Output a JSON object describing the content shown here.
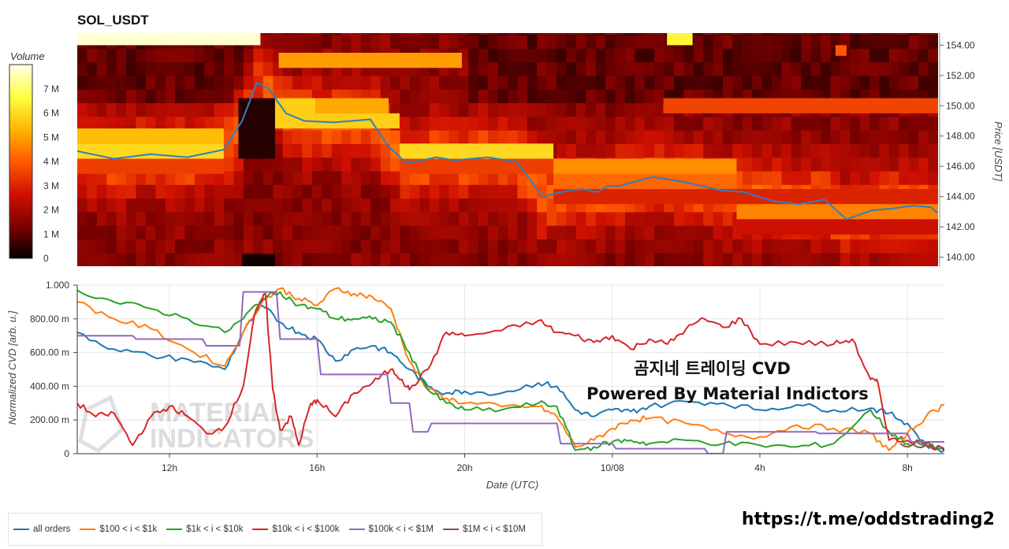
{
  "title": "SOL_USDT",
  "watermark": {
    "line1": "곰지네 트레이딩 CVD",
    "line2": "Powered By Material Indictors"
  },
  "telegram_link": "https://t.me/oddstrading2",
  "brand_watermark": {
    "line1": "MATERIAL",
    "line2": "INDICATORS"
  },
  "chart_data": [
    {
      "type": "heatmap",
      "title": "SOL_USDT",
      "colorbar": {
        "label": "Volume",
        "ticks": [
          "0",
          "1 M",
          "2 M",
          "3 M",
          "4 M",
          "5 M",
          "6 M",
          "7 M"
        ],
        "tick_values": [
          0,
          1,
          2,
          3,
          4,
          5,
          6,
          7
        ],
        "max": 8,
        "colors": [
          "#000000",
          "#7a0000",
          "#d01000",
          "#ff5a00",
          "#ffb300",
          "#ffff40",
          "#ffffe8"
        ]
      },
      "ylabel": "Price [USDT]",
      "y_ticks": [
        "140.00",
        "142.00",
        "144.00",
        "146.00",
        "148.00",
        "150.00",
        "152.00",
        "154.00"
      ],
      "y_tick_values": [
        140,
        142,
        144,
        146,
        148,
        150,
        152,
        154
      ],
      "ylim": [
        139.4,
        154.8
      ],
      "x_hours_range": [
        9.5,
        33.0
      ],
      "price_line": {
        "color": "#2f7fc1",
        "t": [
          9.5,
          10.5,
          11.5,
          12.5,
          13.5,
          14.0,
          14.4,
          14.7,
          15.2,
          15.7,
          16.5,
          17.5,
          18.0,
          18.5,
          19.3,
          19.8,
          20.7,
          21.5,
          22.2,
          22.9,
          23.3,
          23.7,
          24.0,
          24.3,
          25.2,
          26.0,
          27.1,
          27.7,
          28.5,
          29.2,
          29.9,
          30.5,
          31.2,
          31.7,
          32.3,
          32.8,
          33.0
        ],
        "price": [
          147.0,
          146.5,
          146.8,
          146.6,
          147.1,
          149.0,
          151.5,
          151.2,
          149.5,
          149.0,
          148.9,
          149.1,
          147.3,
          146.2,
          146.6,
          146.4,
          146.6,
          146.3,
          144.0,
          144.4,
          144.5,
          144.3,
          144.7,
          144.7,
          145.3,
          145.0,
          144.4,
          144.3,
          143.7,
          143.5,
          143.8,
          142.5,
          143.1,
          143.2,
          143.4,
          143.3,
          142.9
        ]
      },
      "heat_segments": [
        {
          "bands": [
            147.5,
            148.5
          ],
          "t0": 9.5,
          "t1": 13.5,
          "level": 5.5
        },
        {
          "bands": [
            146.5,
            147.5
          ],
          "t0": 9.5,
          "t1": 13.5,
          "level": 6.0
        },
        {
          "bands": [
            145.5,
            146.5
          ],
          "t0": 9.5,
          "t1": 13.5,
          "level": 3.5
        },
        {
          "bands": [
            148.5,
            150.5
          ],
          "t0": 14.8,
          "t1": 16.0,
          "level": 5.8
        },
        {
          "bands": [
            149.5,
            150.5
          ],
          "t0": 16.0,
          "t1": 18.0,
          "level": 5.2
        },
        {
          "bands": [
            148.5,
            149.5
          ],
          "t0": 16.0,
          "t1": 18.3,
          "level": 5.8
        },
        {
          "bands": [
            152.5,
            153.5
          ],
          "t0": 15.0,
          "t1": 20.0,
          "level": 5.0
        },
        {
          "bands": [
            146.5,
            147.5
          ],
          "t0": 18.3,
          "t1": 22.5,
          "level": 6.0
        },
        {
          "bands": [
            145.5,
            146.5
          ],
          "t0": 18.3,
          "t1": 22.5,
          "level": 3.5
        },
        {
          "bands": [
            149.5,
            150.5
          ],
          "t0": 25.5,
          "t1": 33.0,
          "level": 3.6
        },
        {
          "bands": [
            145.5,
            146.5
          ],
          "t0": 22.5,
          "t1": 27.5,
          "level": 4.8
        },
        {
          "bands": [
            144.5,
            145.5
          ],
          "t0": 22.5,
          "t1": 27.5,
          "level": 4.2
        },
        {
          "bands": [
            143.5,
            144.5
          ],
          "t0": 22.5,
          "t1": 33.0,
          "level": 3.0
        },
        {
          "bands": [
            142.5,
            143.5
          ],
          "t0": 27.5,
          "t1": 33.0,
          "level": 4.6
        },
        {
          "bands": [
            141.5,
            142.5
          ],
          "t0": 27.5,
          "t1": 33.0,
          "level": 2.6
        },
        {
          "bands": [
            154.0,
            154.8
          ],
          "t0": 9.5,
          "t1": 14.5,
          "level": 7.8
        },
        {
          "bands": [
            154.0,
            154.8
          ],
          "t0": 25.6,
          "t1": 26.3,
          "level": 6.5
        },
        {
          "bands": [
            153.3,
            154.0
          ],
          "t0": 30.2,
          "t1": 30.5,
          "level": 4.0
        },
        {
          "bands": [
            139.4,
            140.2
          ],
          "t0": 14.0,
          "t1": 14.9,
          "level": 0.2
        },
        {
          "bands": [
            146.5,
            150.5
          ],
          "t0": 13.9,
          "t1": 14.9,
          "level": 0.4
        }
      ]
    },
    {
      "type": "line",
      "ylabel": "Normalized CVD [arb. u.]",
      "xlabel": "Date (UTC)",
      "x_ticks": [
        "12h",
        "16h",
        "20h",
        "10/08",
        "4h",
        "8h"
      ],
      "x_tick_hours": [
        12,
        16,
        20,
        24,
        28,
        32
      ],
      "xlim_hours": [
        9.5,
        33.0
      ],
      "y_ticks": [
        "0",
        "200.00 m",
        "400.00 m",
        "600.00 m",
        "800.00 m",
        "1.000"
      ],
      "y_tick_values": [
        0,
        0.2,
        0.4,
        0.6,
        0.8,
        1.0
      ],
      "ylim": [
        0,
        1.0
      ],
      "grid": true,
      "legend_position": "bottom-left",
      "series": [
        {
          "name": "all orders",
          "color": "#1f77b4",
          "t": [
            9.5,
            10.5,
            11.5,
            12.5,
            13.5,
            14.0,
            14.5,
            15.0,
            15.5,
            16.0,
            16.5,
            17.0,
            17.5,
            18.0,
            18.5,
            19.0,
            19.5,
            20.0,
            21.0,
            22.0,
            22.5,
            23.0,
            23.5,
            24.0,
            24.5,
            25.0,
            26.0,
            27.0,
            28.0,
            29.0,
            30.0,
            31.0,
            31.5,
            32.0,
            32.5,
            33.0
          ],
          "y": [
            0.72,
            0.62,
            0.58,
            0.56,
            0.5,
            0.72,
            0.88,
            0.78,
            0.72,
            0.68,
            0.55,
            0.62,
            0.64,
            0.6,
            0.5,
            0.4,
            0.36,
            0.37,
            0.36,
            0.42,
            0.4,
            0.26,
            0.22,
            0.26,
            0.25,
            0.28,
            0.31,
            0.3,
            0.26,
            0.29,
            0.26,
            0.27,
            0.24,
            0.18,
            0.05,
            0.02
          ]
        },
        {
          "name": "$100 < i < $1k",
          "color": "#ff7f0e",
          "t": [
            9.5,
            10.5,
            11.5,
            12.5,
            13.5,
            14.0,
            14.5,
            15.0,
            15.5,
            16.0,
            16.5,
            17.0,
            17.5,
            18.0,
            18.5,
            19.0,
            19.5,
            20.0,
            21.0,
            22.0,
            22.5,
            23.0,
            23.5,
            24.0,
            24.5,
            25.0,
            26.0,
            27.0,
            28.0,
            29.0,
            30.0,
            31.0,
            31.5,
            32.0,
            32.5,
            33.0
          ],
          "y": [
            0.9,
            0.8,
            0.74,
            0.62,
            0.52,
            0.72,
            0.9,
            0.98,
            0.92,
            0.88,
            0.98,
            0.95,
            0.93,
            0.86,
            0.55,
            0.38,
            0.33,
            0.3,
            0.28,
            0.28,
            0.22,
            0.04,
            0.08,
            0.15,
            0.2,
            0.21,
            0.18,
            0.12,
            0.1,
            0.17,
            0.15,
            0.12,
            0.02,
            0.12,
            0.22,
            0.29
          ]
        },
        {
          "name": "$1k < i < $10k",
          "color": "#2ca02c",
          "t": [
            9.5,
            10.5,
            11.5,
            12.5,
            13.5,
            14.0,
            14.5,
            15.0,
            15.5,
            16.0,
            16.5,
            17.0,
            17.5,
            18.0,
            18.5,
            19.0,
            19.5,
            20.0,
            21.0,
            22.0,
            22.5,
            23.0,
            23.5,
            24.0,
            24.5,
            25.0,
            26.0,
            27.0,
            28.0,
            29.0,
            30.0,
            31.0,
            31.5,
            32.0,
            32.5,
            33.0
          ],
          "y": [
            0.97,
            0.9,
            0.86,
            0.8,
            0.72,
            0.8,
            0.92,
            0.96,
            0.88,
            0.86,
            0.8,
            0.8,
            0.8,
            0.78,
            0.6,
            0.38,
            0.3,
            0.26,
            0.26,
            0.3,
            0.28,
            0.02,
            0.04,
            0.07,
            0.08,
            0.06,
            0.08,
            0.06,
            0.05,
            0.04,
            0.06,
            0.26,
            0.13,
            0.06,
            0.05,
            0.02
          ]
        },
        {
          "name": "$10k < i < $100k",
          "color": "#d62728",
          "t": [
            9.5,
            10.0,
            10.5,
            11.0,
            11.5,
            12.0,
            12.5,
            13.0,
            13.5,
            14.0,
            14.3,
            14.6,
            14.8,
            15.0,
            15.3,
            15.5,
            15.8,
            16.0,
            16.5,
            17.0,
            17.5,
            18.0,
            18.3,
            18.5,
            19.0,
            19.5,
            20.0,
            21.0,
            22.0,
            22.5,
            23.0,
            23.5,
            24.0,
            24.5,
            25.0,
            25.5,
            26.0,
            26.5,
            27.0,
            27.5,
            28.0,
            29.0,
            30.0,
            30.5,
            31.0,
            31.2,
            31.5,
            32.0,
            32.5,
            33.0
          ],
          "y": [
            0.3,
            0.22,
            0.24,
            0.05,
            0.22,
            0.28,
            0.22,
            0.12,
            0.16,
            0.4,
            0.82,
            0.95,
            0.38,
            0.14,
            0.22,
            0.05,
            0.28,
            0.32,
            0.22,
            0.36,
            0.42,
            0.5,
            0.44,
            0.38,
            0.5,
            0.72,
            0.7,
            0.73,
            0.79,
            0.72,
            0.7,
            0.66,
            0.7,
            0.62,
            0.68,
            0.65,
            0.74,
            0.8,
            0.75,
            0.8,
            0.65,
            0.66,
            0.65,
            0.68,
            0.44,
            0.42,
            0.08,
            0.08,
            0.06,
            0.02
          ]
        },
        {
          "name": "$100k < i < $1M",
          "color": "#9467bd",
          "t": [
            9.5,
            11.0,
            11.1,
            12.9,
            13.0,
            13.9,
            14.0,
            14.9,
            15.0,
            16.0,
            16.1,
            17.9,
            18.0,
            18.5,
            18.6,
            19.0,
            19.1,
            22.5,
            22.6,
            24.0,
            24.1,
            26.5,
            26.6,
            27.0,
            27.1,
            29.5,
            29.6,
            32.0,
            32.1,
            33.0
          ],
          "y": [
            0.7,
            0.7,
            0.68,
            0.68,
            0.64,
            0.64,
            0.96,
            0.96,
            0.68,
            0.68,
            0.47,
            0.47,
            0.3,
            0.3,
            0.13,
            0.13,
            0.18,
            0.18,
            0.06,
            0.06,
            0.03,
            0.03,
            0.0,
            0.0,
            0.13,
            0.13,
            0.12,
            0.12,
            0.07,
            0.07
          ]
        },
        {
          "name": "$1M < i < $10M",
          "color": "#8c564b",
          "t": [
            31.8,
            32.5,
            33.0
          ],
          "y": [
            0.06,
            0.05,
            0.03
          ]
        }
      ]
    }
  ]
}
